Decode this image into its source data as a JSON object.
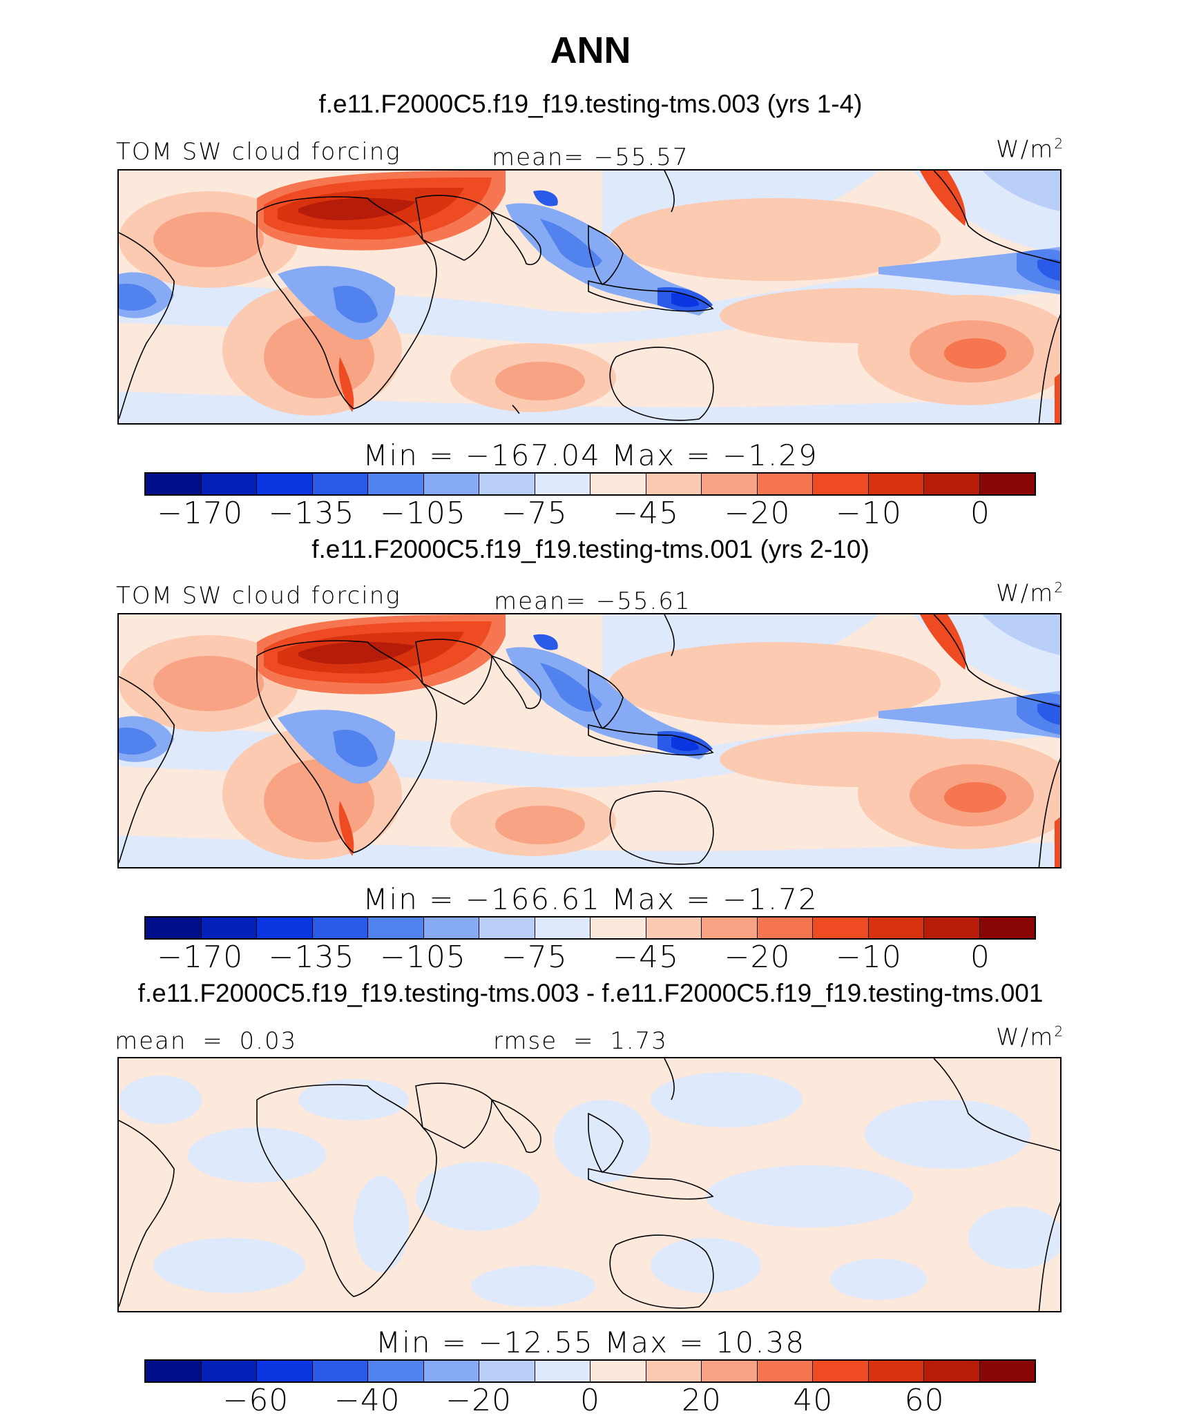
{
  "figure": {
    "title": "ANN"
  },
  "panels": [
    {
      "case_title": "f.e11.F2000C5.f19_f19.testing-tms.003 (yrs 1-4)",
      "left_label": "TOM SW cloud forcing",
      "center_label": "mean= −55.57",
      "units_base": "W/m",
      "units_exp": "2",
      "min_max": "Min = −167.04 Max = −1.29"
    },
    {
      "case_title": "f.e11.F2000C5.f19_f19.testing-tms.001 (yrs 2-10)",
      "left_label": "TOM SW cloud forcing",
      "center_label": "mean= −55.61",
      "units_base": "W/m",
      "units_exp": "2",
      "min_max": "Min = −166.61 Max = −1.72"
    },
    {
      "case_title": "f.e11.F2000C5.f19_f19.testing-tms.003 - f.e11.F2000C5.f19_f19.testing-tms.001",
      "left_label": "mean = 0.03",
      "center_label": "rmse = 1.73",
      "units_base": "W/m",
      "units_exp": "2",
      "min_max": "Min = −12.55 Max = 10.38"
    }
  ],
  "chart_data": [
    {
      "type": "heatmap",
      "title": "f.e11.F2000C5.f19_f19.testing-tms.003 (yrs 1-4)",
      "variable": "TOM SW cloud forcing",
      "units": "W/m2",
      "mean": -55.57,
      "min": -167.04,
      "max": -1.29,
      "colorbar_ticks": [
        "−170",
        "−135",
        "−105",
        "−75",
        "−45",
        "−20",
        "−10",
        "0"
      ],
      "colorbar_tick_values": [
        -170,
        -135,
        -105,
        -75,
        -45,
        -20,
        -10,
        0
      ],
      "colors": [
        "#000e8a",
        "#0320b8",
        "#0a35e0",
        "#2a5ae8",
        "#5282ee",
        "#86aaf3",
        "#b9cff8",
        "#dfe9fc",
        "#fde8dc",
        "#fccab1",
        "#f8a384",
        "#f57650",
        "#ef4b22",
        "#d9320f",
        "#b51d0a",
        "#8a0505"
      ]
    },
    {
      "type": "heatmap",
      "title": "f.e11.F2000C5.f19_f19.testing-tms.001 (yrs 2-10)",
      "variable": "TOM SW cloud forcing",
      "units": "W/m2",
      "mean": -55.61,
      "min": -166.61,
      "max": -1.72,
      "colorbar_ticks": [
        "−170",
        "−135",
        "−105",
        "−75",
        "−45",
        "−20",
        "−10",
        "0"
      ],
      "colorbar_tick_values": [
        -170,
        -135,
        -105,
        -75,
        -45,
        -20,
        -10,
        0
      ],
      "colors": [
        "#000e8a",
        "#0320b8",
        "#0a35e0",
        "#2a5ae8",
        "#5282ee",
        "#86aaf3",
        "#b9cff8",
        "#dfe9fc",
        "#fde8dc",
        "#fccab1",
        "#f8a384",
        "#f57650",
        "#ef4b22",
        "#d9320f",
        "#b51d0a",
        "#8a0505"
      ]
    },
    {
      "type": "heatmap",
      "title": "f.e11.F2000C5.f19_f19.testing-tms.003 - f.e11.F2000C5.f19_f19.testing-tms.001",
      "units": "W/m2",
      "mean": 0.03,
      "rmse": 1.73,
      "min": -12.55,
      "max": 10.38,
      "colorbar_ticks": [
        "−60",
        "−40",
        "−20",
        "0",
        "20",
        "40",
        "60"
      ],
      "colorbar_tick_values": [
        -60,
        -40,
        -20,
        0,
        20,
        40,
        60
      ],
      "colors": [
        "#000e8a",
        "#0320b8",
        "#0a35e0",
        "#2a5ae8",
        "#5282ee",
        "#86aaf3",
        "#b9cff8",
        "#dfe9fc",
        "#fde8dc",
        "#fccab1",
        "#f8a384",
        "#f57650",
        "#ef4b22",
        "#d9320f",
        "#b51d0a",
        "#8a0505"
      ]
    }
  ]
}
